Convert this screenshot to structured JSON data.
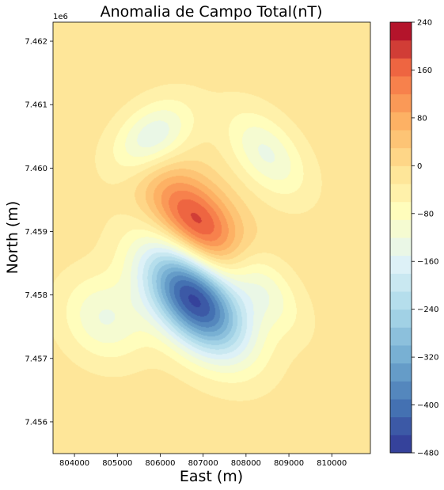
{
  "chart_data": {
    "type": "contour",
    "title": "Anomalia de Campo Total(nT)",
    "xlabel": "East (m)",
    "ylabel": "North (m)",
    "y_offset_text": "1e6",
    "xlim": [
      803500,
      810900
    ],
    "ylim": [
      7.4555,
      7.4623
    ],
    "x_ticks": [
      804000,
      805000,
      806000,
      807000,
      808000,
      809000,
      810000
    ],
    "x_tick_labels": [
      "804000",
      "805000",
      "806000",
      "807000",
      "808000",
      "809000",
      "810000"
    ],
    "y_ticks": [
      7.456,
      7.457,
      7.458,
      7.459,
      7.46,
      7.461,
      7.462
    ],
    "y_tick_labels": [
      "7.456",
      "7.457",
      "7.458",
      "7.459",
      "7.460",
      "7.461",
      "7.462"
    ],
    "levels": [
      -480,
      -450,
      -420,
      -390,
      -360,
      -330,
      -300,
      -270,
      -240,
      -210,
      -180,
      -150,
      -120,
      -90,
      -60,
      -30,
      0,
      30,
      60,
      90,
      120,
      150,
      180,
      210,
      240
    ],
    "colorbar_ticks": [
      -480,
      -400,
      -320,
      -240,
      -160,
      -80,
      0,
      80,
      160,
      240
    ],
    "colorbar_tick_labels": [
      "−480",
      "−400",
      "−320",
      "−240",
      "−160",
      "−80",
      "0",
      "80",
      "160",
      "240"
    ],
    "colormap": "RdYlBu_r",
    "anomalies": [
      {
        "sign": "positive",
        "x": 806900,
        "y": 7.45905,
        "peak": 228
      },
      {
        "sign": "negative",
        "x": 806800,
        "y": 7.45795,
        "peak": -470
      }
    ],
    "background_value": -15
  }
}
